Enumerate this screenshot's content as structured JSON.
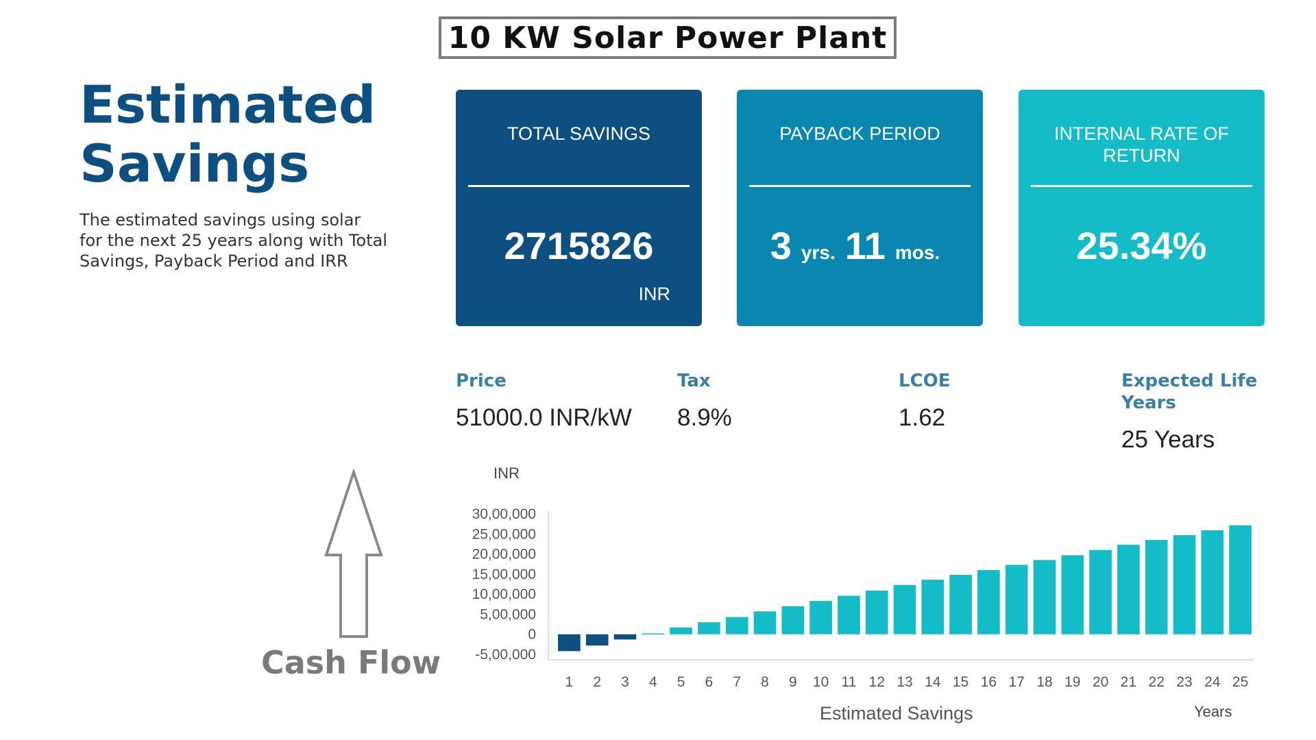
{
  "page_title": "10 KW  Solar Power Plant",
  "heading": {
    "line1": "Estimated",
    "line2": "Savings"
  },
  "description": "The estimated savings using solar for the next 25 years along with Total Savings, Payback Period and IRR",
  "cards": {
    "total_savings": {
      "label": "TOTAL SAVINGS",
      "value": "2715826",
      "unit": "INR"
    },
    "payback_period": {
      "label": "PAYBACK PERIOD",
      "years": "3",
      "years_unit": "yrs.",
      "months": "11",
      "months_unit": "mos."
    },
    "irr": {
      "label": "INTERNAL RATE OF RETURN",
      "value": "25.34%"
    }
  },
  "stats": {
    "price": {
      "label": "Price",
      "value": "51000.0 INR/kW"
    },
    "tax": {
      "label": "Tax",
      "value": "8.9%"
    },
    "lcoe": {
      "label": "LCOE",
      "value": "1.62"
    },
    "life": {
      "label": "Expected Life Years",
      "value": "25 Years"
    }
  },
  "cash_flow_label": "Cash Flow",
  "colors": {
    "brand_dark": "#0d4f80",
    "brand_mid": "#0987b0",
    "brand_light": "#13bcc6",
    "negative_bar": "#0d4f80",
    "positive_bar": "#13bcc6"
  },
  "chart_data": {
    "type": "bar",
    "ylabel": "INR",
    "xlabel": "Estimated Savings",
    "x_unit_label": "Years",
    "categories": [
      "1",
      "2",
      "3",
      "4",
      "5",
      "6",
      "7",
      "8",
      "9",
      "10",
      "11",
      "12",
      "13",
      "14",
      "15",
      "16",
      "17",
      "18",
      "19",
      "20",
      "21",
      "22",
      "23",
      "24",
      "25"
    ],
    "values": [
      -420000,
      -280000,
      -130000,
      20000,
      170000,
      300000,
      430000,
      570000,
      700000,
      830000,
      960000,
      1090000,
      1230000,
      1360000,
      1480000,
      1600000,
      1730000,
      1850000,
      1970000,
      2100000,
      2230000,
      2350000,
      2470000,
      2590000,
      2715826
    ],
    "ylim": [
      -500000,
      3000000
    ],
    "yticks": [
      -500000,
      0,
      500000,
      1000000,
      1500000,
      2000000,
      2500000,
      3000000
    ],
    "ytick_labels": [
      "-5,00,000",
      "0",
      "5,00,000",
      "10,00,000",
      "15,00,000",
      "20,00,000",
      "25,00,000",
      "30,00,000"
    ],
    "grid": false,
    "legend": "none"
  }
}
